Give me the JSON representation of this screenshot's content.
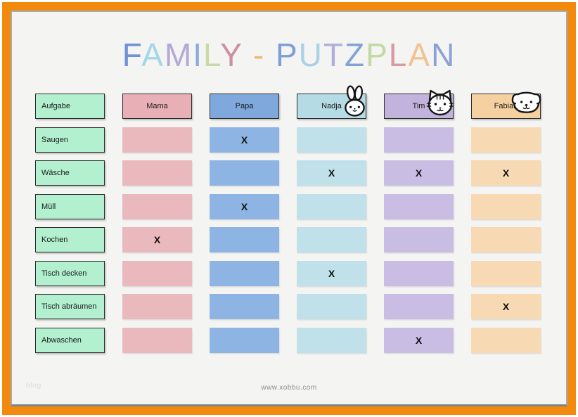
{
  "title": {
    "text": "FAMILY - PUTZPLAN",
    "letters": [
      {
        "ch": "F",
        "color": "#6f91d6"
      },
      {
        "ch": "A",
        "color": "#a5d6e8"
      },
      {
        "ch": "M",
        "color": "#b4a9d6"
      },
      {
        "ch": "I",
        "color": "#8aa9e0"
      },
      {
        "ch": "L",
        "color": "#c8daa6"
      },
      {
        "ch": "Y",
        "color": "#cd8f9c"
      },
      {
        "ch": " "
      },
      {
        "ch": "-",
        "color": "#f2b87a"
      },
      {
        "ch": " "
      },
      {
        "ch": "P",
        "color": "#7d9ed8"
      },
      {
        "ch": "U",
        "color": "#a9d3e4"
      },
      {
        "ch": "T",
        "color": "#b1aed9"
      },
      {
        "ch": "Z",
        "color": "#7fa3d6"
      },
      {
        "ch": "P",
        "color": "#c3d9a3"
      },
      {
        "ch": "L",
        "color": "#d89aa4"
      },
      {
        "ch": "A",
        "color": "#f0c492"
      },
      {
        "ch": "N",
        "color": "#8aa3d4"
      }
    ]
  },
  "table": {
    "task_column_header": "Aufgabe",
    "task_color": "#b2f0d0",
    "columns": [
      {
        "name": "Mama",
        "header_color": "#e8b0b6",
        "cell_color": "#eab9bd",
        "icon": null
      },
      {
        "name": "Papa",
        "header_color": "#7fa9dc",
        "cell_color": "#8db4e2",
        "icon": null
      },
      {
        "name": "Nadja",
        "header_color": "#b5dbe4",
        "cell_color": "#c0e1e9",
        "icon": "bunny"
      },
      {
        "name": "Tim",
        "header_color": "#c2b3dc",
        "cell_color": "#cabde3",
        "icon": "cat"
      },
      {
        "name": "Fabian",
        "header_color": "#f5d0a0",
        "cell_color": "#f7d9b3",
        "icon": "dog"
      }
    ],
    "tasks": [
      "Saugen",
      "Wäsche",
      "Müll",
      "Kochen",
      "Tisch decken",
      "Tisch abräumen",
      "Abwaschen"
    ],
    "mark_symbol": "X",
    "marks": [
      [
        "",
        "X",
        "",
        "",
        ""
      ],
      [
        "",
        "",
        "X",
        "X",
        "X"
      ],
      [
        "",
        "X",
        "",
        "",
        ""
      ],
      [
        "X",
        "",
        "",
        "",
        ""
      ],
      [
        "",
        "",
        "X",
        "",
        ""
      ],
      [
        "",
        "",
        "",
        "",
        "X"
      ],
      [
        "",
        "",
        "",
        "X",
        ""
      ]
    ]
  },
  "footer": {
    "watermark": "blog",
    "site": "www.xobbu.com"
  },
  "frame": {
    "orange": "#f28a0e",
    "page_border": "#a6acb2",
    "page_bg": "#f4f4f3"
  }
}
